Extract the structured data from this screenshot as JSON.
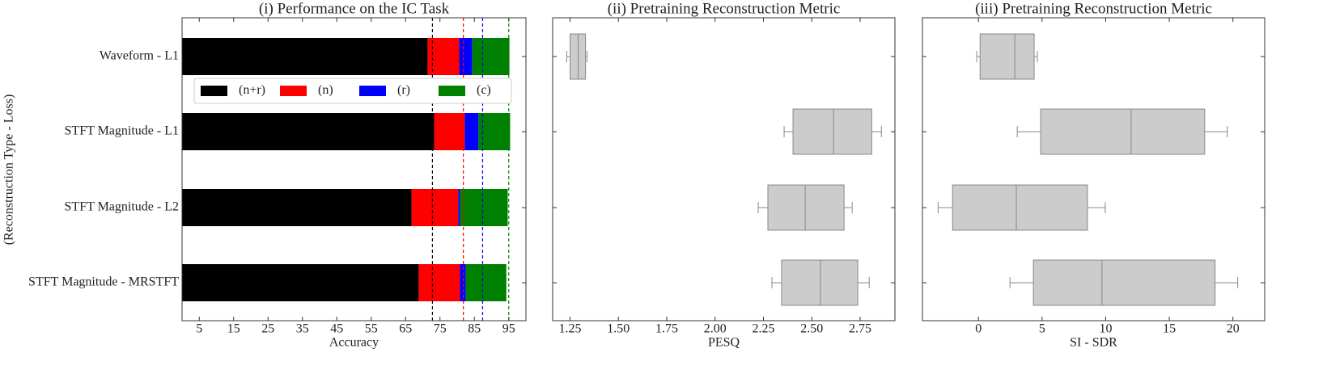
{
  "chart_data": [
    {
      "type": "stacked-barh",
      "title": "(i) Performance on the IC Task",
      "xlabel": "Accuracy",
      "ylabel": "(Reconstruction Type - Loss)",
      "categories": [
        "Waveform - L1",
        "STFT Magnitude - L1",
        "STFT Magnitude - L2",
        "STFT Magnitude - MRSTFT"
      ],
      "series": [
        {
          "name": "(n+r)",
          "color": "#000000",
          "values": [
            71.4,
            73.3,
            66.7,
            68.8
          ]
        },
        {
          "name": "(n)",
          "color": "#ff0000",
          "values": [
            9.2,
            8.9,
            13.6,
            12.0
          ]
        },
        {
          "name": "(r)",
          "color": "#0000ff",
          "values": [
            3.8,
            4.0,
            0.5,
            1.7
          ]
        },
        {
          "name": "(c)",
          "color": "#008000",
          "values": [
            10.8,
            9.2,
            13.9,
            11.8
          ]
        }
      ],
      "reference_lines": [
        {
          "value": 72.8,
          "color": "#000000"
        },
        {
          "value": 81.8,
          "color": "#ff0000"
        },
        {
          "value": 87.4,
          "color": "#0000ff"
        },
        {
          "value": 95.0,
          "color": "#008000"
        }
      ],
      "xlim": [
        0,
        100
      ],
      "xticks": [
        5,
        15,
        25,
        35,
        45,
        55,
        65,
        75,
        85,
        95
      ],
      "legend": "upper center"
    },
    {
      "type": "box",
      "title": "(ii) Pretraining Reconstruction Metric",
      "xlabel": "PESQ",
      "color": "#cccccc",
      "boxes": [
        [
          1.233,
          1.25,
          1.292,
          1.33,
          1.338
        ],
        [
          2.357,
          2.403,
          2.613,
          2.81,
          2.86
        ],
        [
          2.223,
          2.273,
          2.466,
          2.667,
          2.709
        ],
        [
          2.294,
          2.344,
          2.545,
          2.738,
          2.797
        ]
      ],
      "xlim": [
        1.16,
        2.93
      ],
      "xticks": [
        1.25,
        {
          "value": 1.5,
          "label": "1.50"
        },
        1.75,
        {
          "value": 2,
          "label": "2.00"
        },
        2.25,
        {
          "value": 2.5,
          "label": "2.50"
        },
        2.75
      ]
    },
    {
      "type": "box",
      "title": "(iii) Pretraining Reconstruction Metric",
      "xlabel": "SI - SDR",
      "color": "#cccccc",
      "boxes": [
        [
          -0.13,
          0.13,
          2.86,
          4.38,
          4.63
        ],
        [
          3.05,
          4.89,
          12.0,
          17.78,
          19.56
        ],
        [
          -3.17,
          -2.03,
          2.98,
          8.57,
          9.97
        ],
        [
          2.48,
          4.32,
          9.71,
          18.6,
          20.38
        ]
      ],
      "xlim": [
        -4.4,
        22.5
      ],
      "xticks": [
        0,
        5,
        10,
        15,
        20
      ]
    }
  ]
}
